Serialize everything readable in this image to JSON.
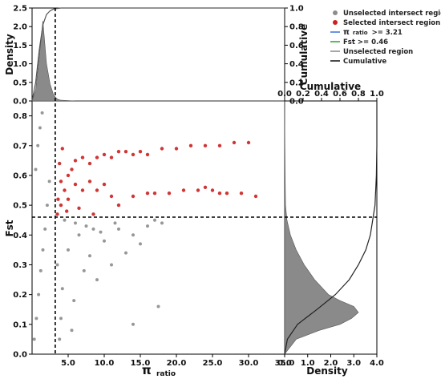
{
  "chart_data": [
    {
      "id": "main_scatter",
      "type": "scatter",
      "xlabel_main": "π",
      "xlabel_sub": "ratio",
      "ylabel": "Fst",
      "xlim": [
        0,
        35
      ],
      "ylim": [
        0,
        0.85
      ],
      "xticks": [
        "5.0",
        "10.0",
        "15.0",
        "20.0",
        "25.0",
        "30.0",
        "35.0"
      ],
      "xtick_values": [
        5,
        10,
        15,
        20,
        25,
        30,
        35
      ],
      "yticks": [
        "0.0",
        "0.1",
        "0.2",
        "0.3",
        "0.4",
        "0.5",
        "0.6",
        "0.7",
        "0.8"
      ],
      "ytick_values": [
        0,
        0.1,
        0.2,
        0.3,
        0.4,
        0.5,
        0.6,
        0.7,
        0.8
      ],
      "threshold_x": 3.21,
      "threshold_y": 0.46,
      "series": [
        {
          "name": "Unselected intersect region",
          "color": "#8c8c8c",
          "points": [
            [
              0.3,
              0.05
            ],
            [
              0.6,
              0.12
            ],
            [
              0.9,
              0.2
            ],
            [
              1.2,
              0.28
            ],
            [
              1.5,
              0.35
            ],
            [
              1.8,
              0.42
            ],
            [
              2.1,
              0.5
            ],
            [
              2.4,
              0.58
            ],
            [
              0.5,
              0.62
            ],
            [
              0.8,
              0.7
            ],
            [
              1.1,
              0.76
            ],
            [
              1.4,
              0.81
            ],
            [
              3.5,
              0.3
            ],
            [
              4.2,
              0.22
            ],
            [
              5.0,
              0.35
            ],
            [
              5.8,
              0.18
            ],
            [
              6.5,
              0.4
            ],
            [
              7.2,
              0.28
            ],
            [
              8.0,
              0.33
            ],
            [
              9.0,
              0.25
            ],
            [
              10.0,
              0.38
            ],
            [
              11.0,
              0.3
            ],
            [
              12.0,
              0.42
            ],
            [
              13.0,
              0.34
            ],
            [
              14.0,
              0.4
            ],
            [
              15.0,
              0.37
            ],
            [
              16.0,
              0.43
            ],
            [
              17.0,
              0.45
            ],
            [
              18.0,
              0.44
            ],
            [
              4.0,
              0.12
            ],
            [
              5.5,
              0.08
            ],
            [
              3.8,
              0.05
            ],
            [
              4.5,
              0.45
            ],
            [
              6.0,
              0.44
            ],
            [
              8.5,
              0.42
            ],
            [
              11.5,
              0.44
            ],
            [
              17.5,
              0.16
            ],
            [
              14.0,
              0.1
            ],
            [
              7.5,
              0.43
            ],
            [
              9.5,
              0.41
            ]
          ]
        },
        {
          "name": "Selected intersect region",
          "color": "#cc1f1f",
          "points": [
            [
              3.5,
              0.47
            ],
            [
              4.0,
              0.5
            ],
            [
              4.5,
              0.55
            ],
            [
              5.0,
              0.6
            ],
            [
              5.5,
              0.62
            ],
            [
              6.0,
              0.65
            ],
            [
              7.0,
              0.66
            ],
            [
              8.0,
              0.64
            ],
            [
              9.0,
              0.66
            ],
            [
              10.0,
              0.67
            ],
            [
              11.0,
              0.66
            ],
            [
              12.0,
              0.68
            ],
            [
              13.0,
              0.68
            ],
            [
              14.0,
              0.67
            ],
            [
              15.0,
              0.68
            ],
            [
              16.0,
              0.67
            ],
            [
              18.0,
              0.69
            ],
            [
              20.0,
              0.69
            ],
            [
              22.0,
              0.7
            ],
            [
              24.0,
              0.7
            ],
            [
              26.0,
              0.7
            ],
            [
              28.0,
              0.71
            ],
            [
              30.0,
              0.71
            ],
            [
              4.0,
              0.58
            ],
            [
              5.0,
              0.52
            ],
            [
              6.0,
              0.57
            ],
            [
              7.0,
              0.55
            ],
            [
              8.0,
              0.58
            ],
            [
              9.0,
              0.55
            ],
            [
              10.0,
              0.57
            ],
            [
              11.0,
              0.53
            ],
            [
              12.0,
              0.5
            ],
            [
              14.0,
              0.53
            ],
            [
              16.0,
              0.54
            ],
            [
              17.0,
              0.54
            ],
            [
              19.0,
              0.54
            ],
            [
              21.0,
              0.55
            ],
            [
              23.0,
              0.55
            ],
            [
              24.0,
              0.56
            ],
            [
              25.0,
              0.55
            ],
            [
              26.0,
              0.54
            ],
            [
              27.0,
              0.54
            ],
            [
              29.0,
              0.54
            ],
            [
              31.0,
              0.53
            ],
            [
              3.8,
              0.64
            ],
            [
              4.2,
              0.69
            ],
            [
              3.6,
              0.52
            ],
            [
              4.8,
              0.48
            ],
            [
              6.5,
              0.49
            ],
            [
              8.5,
              0.47
            ]
          ]
        }
      ]
    },
    {
      "id": "top_marginal",
      "type": "area",
      "ylabel_left": "Density",
      "ylabel_right": "Cumulative",
      "ylim_left": [
        0,
        2.5
      ],
      "ylim_right": [
        0,
        1.0
      ],
      "yticks_left": [
        "0.0",
        "0.5",
        "1.0",
        "1.5",
        "2.0",
        "2.5"
      ],
      "ytick_values_left": [
        0,
        0.5,
        1.0,
        1.5,
        2.0,
        2.5
      ],
      "yticks_right": [
        "0.0",
        "0.2",
        "0.4",
        "0.6",
        "0.8",
        "1.0"
      ],
      "ytick_values_right": [
        0,
        0.2,
        0.4,
        0.6,
        0.8,
        1.0
      ],
      "density_x": [
        0,
        0.5,
        1.0,
        1.5,
        2.0,
        2.5,
        3.0,
        3.5,
        4.0,
        5.0,
        6.0,
        8.0,
        35.0
      ],
      "density_y": [
        0.0,
        0.3,
        1.2,
        2.15,
        1.0,
        0.45,
        0.15,
        0.05,
        0.02,
        0.01,
        0.0,
        0.0,
        0.0
      ],
      "cumulative_x": [
        0,
        0.5,
        1.0,
        1.5,
        2.0,
        2.5,
        3.0,
        4.0,
        5.0,
        35.0
      ],
      "cumulative_y": [
        0.0,
        0.2,
        0.55,
        0.82,
        0.93,
        0.97,
        0.99,
        1.0,
        1.0,
        1.0
      ]
    },
    {
      "id": "right_marginal",
      "type": "area",
      "xlabel_bottom": "Density",
      "xlabel_top": "Cumulative",
      "xlim_bottom": [
        0,
        4.0
      ],
      "xlim_top": [
        0,
        1.0
      ],
      "xticks_bottom": [
        "0.0",
        "1.0",
        "2.0",
        "3.0",
        "4.0"
      ],
      "xtick_values_bottom": [
        0,
        1.0,
        2.0,
        3.0,
        4.0
      ],
      "xticks_top": [
        "0.0",
        "0.2",
        "0.4",
        "0.6",
        "0.8",
        "1.0"
      ],
      "xtick_values_top": [
        0,
        0.2,
        0.4,
        0.6,
        0.8,
        1.0
      ],
      "density_y": [
        0.0,
        0.05,
        0.08,
        0.1,
        0.12,
        0.14,
        0.16,
        0.18,
        0.2,
        0.25,
        0.3,
        0.35,
        0.4,
        0.45,
        0.5,
        0.6,
        0.7,
        0.85
      ],
      "density_x": [
        0.0,
        0.5,
        1.5,
        2.4,
        2.9,
        3.2,
        3.0,
        2.4,
        1.9,
        1.3,
        0.85,
        0.5,
        0.25,
        0.1,
        0.04,
        0.02,
        0.01,
        0.0
      ],
      "cumulative_y": [
        0.0,
        0.05,
        0.1,
        0.15,
        0.2,
        0.25,
        0.3,
        0.35,
        0.4,
        0.5,
        0.6,
        0.7,
        0.85
      ],
      "cumulative_x": [
        0.0,
        0.03,
        0.14,
        0.35,
        0.55,
        0.7,
        0.8,
        0.88,
        0.93,
        0.98,
        0.995,
        1.0,
        1.0
      ]
    }
  ],
  "legend": {
    "items": [
      {
        "label": "Unselected intersect region",
        "kind": "dot",
        "color": "#8c8c8c"
      },
      {
        "label": "Selected intersect region",
        "kind": "dot",
        "color": "#cc1f1f"
      },
      {
        "label_main": "π",
        "label_sub": "ratio",
        "label_tail": ">= 3.21",
        "kind": "line",
        "color": "#3b6fd6"
      },
      {
        "label": "Fst >= 0.46",
        "kind": "line",
        "color": "#2ca02c"
      },
      {
        "label": "Unselected region",
        "kind": "line",
        "color": "#888888"
      },
      {
        "label": "Cumulative",
        "kind": "line",
        "color": "#111111"
      }
    ]
  }
}
